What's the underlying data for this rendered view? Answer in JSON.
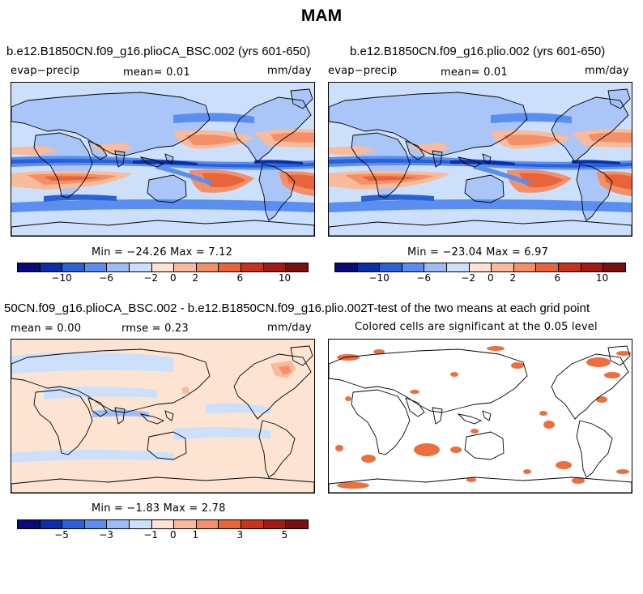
{
  "title": "MAM",
  "colors": {
    "scale": [
      "#0a0a78",
      "#0b2fa8",
      "#2a61d6",
      "#5a8ef0",
      "#9dbcf6",
      "#cde0fb",
      "#fde4d2",
      "#f8bb9c",
      "#f39068",
      "#e8643a",
      "#c8331b",
      "#a11b12",
      "#7a0f0f"
    ],
    "ocean_neutral": "#fde4d2",
    "sig_color": "#ef6e3e"
  },
  "panels": {
    "p1": {
      "title": "b.e12.B1850CN.f09_g16.plioCA_BSC.002 (yrs 601-650)",
      "left_label": "evap−precip",
      "center_label": "mean=    0.01",
      "right_label": "mm/day",
      "stats": "Min = −24.26 Max =    7.12",
      "ticks": [
        "−10",
        "−6",
        "−2",
        "0",
        "2",
        "6",
        "10"
      ]
    },
    "p2": {
      "title": "b.e12.B1850CN.f09_g16.plio.002 (yrs 601-650)",
      "left_label": "evap−precip",
      "center_label": "mean=    0.01",
      "right_label": "mm/day",
      "stats": "Min = −23.04 Max =    6.97",
      "ticks": [
        "−10",
        "−6",
        "−2",
        "0",
        "2",
        "6",
        "10"
      ]
    },
    "p3": {
      "title": "50CN.f09_g16.plioCA_BSC.002 - b.e12.B1850CN.f09_g16.plio.002",
      "left_label": "mean =    0.00",
      "center_label": "rmse =    0.23",
      "right_label": "mm/day",
      "stats": "Min = −1.83 Max =    2.78",
      "ticks": [
        "−5",
        "−3",
        "−1",
        "0",
        "1",
        "3",
        "5"
      ]
    },
    "p4": {
      "title": "T-test of the two means at each grid point",
      "subtitle": "Colored cells are significant at the 0.05 level"
    }
  }
}
